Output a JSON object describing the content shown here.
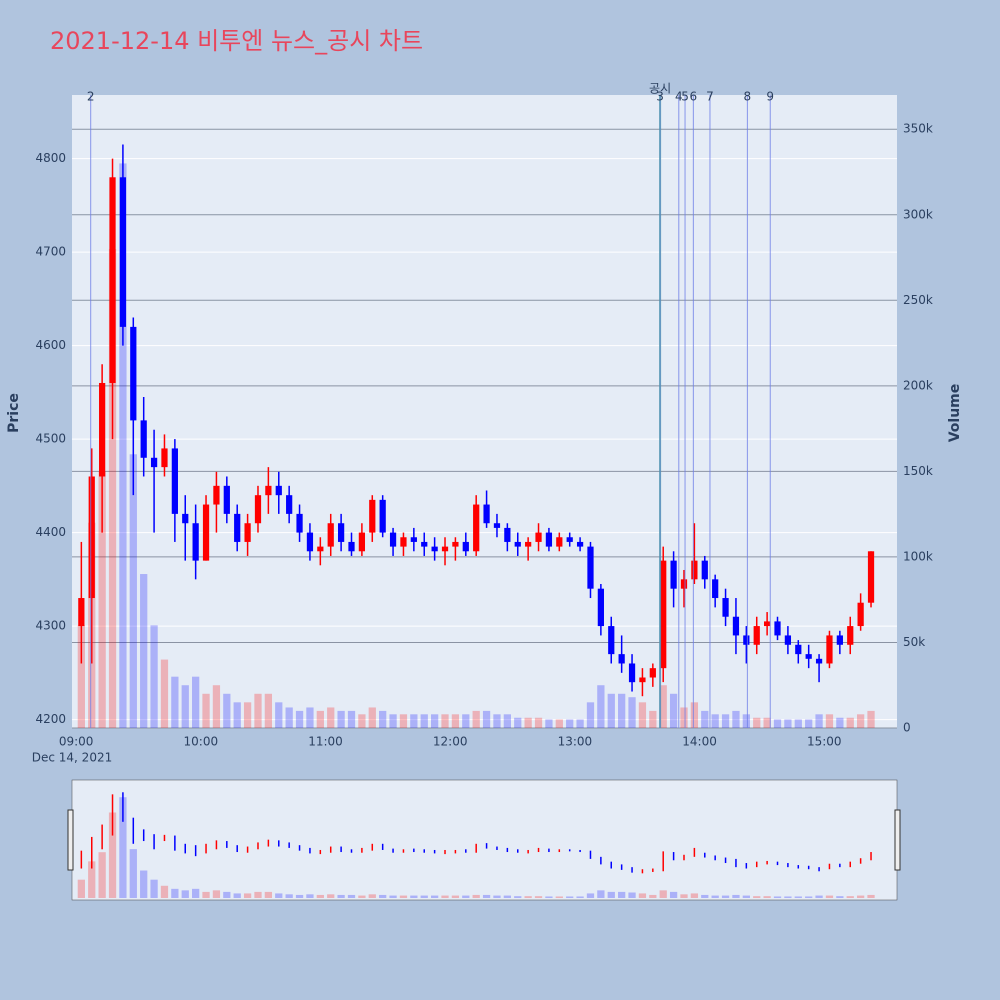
{
  "chart_data": {
    "type": "candlestick",
    "title": "2021-12-14 비투엔 뉴스_공시 차트",
    "y_title": "Price",
    "y2_title": "Volume",
    "x_date_label": "Dec 14, 2021",
    "up_color": "#ff0000",
    "down_color": "#0000ff",
    "xlim": [
      "08:58",
      "15:35"
    ],
    "xticks": [
      "09:00",
      "10:00",
      "11:00",
      "12:00",
      "13:00",
      "14:00",
      "15:00"
    ],
    "ylim": [
      4191,
      4868
    ],
    "yticks": [
      4200,
      4300,
      4400,
      4500,
      4600,
      4700,
      4800
    ],
    "y2lim": [
      0,
      370000
    ],
    "y2ticks": [
      0,
      {
        "value": 50000,
        "label": "50k"
      },
      {
        "value": 100000,
        "label": "100k"
      },
      {
        "value": 150000,
        "label": "150k"
      },
      {
        "value": 200000,
        "label": "200k"
      },
      {
        "value": 250000,
        "label": "250k"
      },
      {
        "value": 300000,
        "label": "300k"
      },
      {
        "value": 350000,
        "label": "350k"
      }
    ],
    "events": [
      {
        "label": "2",
        "x": "09:07",
        "color": "#6f7fe8"
      },
      {
        "label": "공시",
        "x": "13:41",
        "color": "#3aa08a"
      },
      {
        "label": "3",
        "x": "13:41",
        "color": "#6f7fe8"
      },
      {
        "label": "4",
        "x": "13:50",
        "color": "#6f7fe8"
      },
      {
        "label": "5",
        "x": "13:53",
        "color": "#6f7fe8"
      },
      {
        "label": "6",
        "x": "13:57",
        "color": "#6f7fe8"
      },
      {
        "label": "7",
        "x": "14:05",
        "color": "#6f7fe8"
      },
      {
        "label": "8",
        "x": "14:23",
        "color": "#6f7fe8"
      },
      {
        "label": "9",
        "x": "14:34",
        "color": "#6f7fe8"
      }
    ],
    "x": [
      "09:00",
      "09:05",
      "09:10",
      "09:15",
      "09:20",
      "09:25",
      "09:30",
      "09:35",
      "09:40",
      "09:45",
      "09:50",
      "09:55",
      "10:00",
      "10:05",
      "10:10",
      "10:15",
      "10:20",
      "10:25",
      "10:30",
      "10:35",
      "10:40",
      "10:45",
      "10:50",
      "10:55",
      "11:00",
      "11:05",
      "11:10",
      "11:15",
      "11:20",
      "11:25",
      "11:30",
      "11:35",
      "11:40",
      "11:45",
      "11:50",
      "11:55",
      "12:00",
      "12:05",
      "12:10",
      "12:15",
      "12:20",
      "12:25",
      "12:30",
      "12:35",
      "12:40",
      "12:45",
      "12:50",
      "12:55",
      "13:00",
      "13:05",
      "13:10",
      "13:15",
      "13:20",
      "13:25",
      "13:30",
      "13:35",
      "13:40",
      "13:45",
      "13:50",
      "13:55",
      "14:00",
      "14:05",
      "14:10",
      "14:15",
      "14:20",
      "14:25",
      "14:30",
      "14:35",
      "14:40",
      "14:45",
      "14:50",
      "14:55",
      "15:00",
      "15:05",
      "15:10",
      "15:15",
      "15:20"
    ],
    "open": [
      4300,
      4330,
      4460,
      4560,
      4780,
      4620,
      4520,
      4480,
      4470,
      4490,
      4420,
      4410,
      4370,
      4430,
      4450,
      4420,
      4390,
      4410,
      4440,
      4450,
      4440,
      4420,
      4400,
      4380,
      4385,
      4410,
      4390,
      4380,
      4400,
      4435,
      4400,
      4385,
      4395,
      4390,
      4385,
      4380,
      4385,
      4390,
      4380,
      4430,
      4410,
      4405,
      4390,
      4385,
      4390,
      4400,
      4385,
      4395,
      4390,
      4385,
      4340,
      4300,
      4270,
      4260,
      4240,
      4245,
      4255,
      4370,
      4340,
      4350,
      4370,
      4350,
      4330,
      4310,
      4290,
      4280,
      4300,
      4305,
      4290,
      4280,
      4270,
      4265,
      4260,
      4290,
      4280,
      4300,
      4325
    ],
    "high": [
      4390,
      4490,
      4580,
      4800,
      4815,
      4630,
      4545,
      4510,
      4505,
      4500,
      4440,
      4430,
      4440,
      4465,
      4460,
      4430,
      4420,
      4450,
      4470,
      4465,
      4450,
      4430,
      4410,
      4395,
      4420,
      4420,
      4400,
      4410,
      4440,
      4440,
      4405,
      4400,
      4405,
      4400,
      4395,
      4395,
      4395,
      4400,
      4440,
      4445,
      4420,
      4410,
      4400,
      4395,
      4410,
      4405,
      4400,
      4400,
      4395,
      4390,
      4345,
      4310,
      4290,
      4270,
      4255,
      4260,
      4385,
      4380,
      4360,
      4410,
      4375,
      4355,
      4340,
      4330,
      4300,
      4310,
      4315,
      4310,
      4300,
      4285,
      4280,
      4270,
      4295,
      4295,
      4310,
      4335,
      4380
    ],
    "low": [
      4260,
      4260,
      4400,
      4500,
      4600,
      4440,
      4460,
      4400,
      4460,
      4390,
      4370,
      4350,
      4370,
      4400,
      4410,
      4380,
      4375,
      4400,
      4420,
      4420,
      4410,
      4390,
      4370,
      4365,
      4375,
      4380,
      4375,
      4375,
      4390,
      4395,
      4375,
      4375,
      4380,
      4375,
      4370,
      4365,
      4370,
      4375,
      4375,
      4405,
      4395,
      4380,
      4375,
      4370,
      4380,
      4380,
      4380,
      4385,
      4380,
      4330,
      4290,
      4260,
      4250,
      4230,
      4225,
      4235,
      4240,
      4320,
      4320,
      4345,
      4340,
      4320,
      4300,
      4270,
      4260,
      4270,
      4290,
      4285,
      4270,
      4260,
      4255,
      4240,
      4255,
      4270,
      4270,
      4295,
      4320
    ],
    "close": [
      4330,
      4460,
      4560,
      4780,
      4620,
      4520,
      4480,
      4470,
      4490,
      4420,
      4410,
      4370,
      4430,
      4450,
      4420,
      4390,
      4410,
      4440,
      4450,
      4440,
      4420,
      4400,
      4380,
      4385,
      4410,
      4390,
      4380,
      4400,
      4435,
      4400,
      4385,
      4395,
      4390,
      4385,
      4380,
      4385,
      4390,
      4380,
      4430,
      4410,
      4405,
      4390,
      4385,
      4390,
      4400,
      4385,
      4395,
      4390,
      4385,
      4340,
      4300,
      4270,
      4260,
      4240,
      4245,
      4255,
      4370,
      4340,
      4350,
      4370,
      4350,
      4330,
      4310,
      4290,
      4280,
      4300,
      4305,
      4290,
      4280,
      4270,
      4265,
      4260,
      4290,
      4280,
      4300,
      4325,
      4380
    ],
    "volume": [
      60000,
      120000,
      150000,
      280000,
      330000,
      160000,
      90000,
      60000,
      40000,
      30000,
      25000,
      30000,
      20000,
      25000,
      20000,
      15000,
      15000,
      20000,
      20000,
      15000,
      12000,
      10000,
      12000,
      10000,
      12000,
      10000,
      10000,
      8000,
      12000,
      10000,
      8000,
      8000,
      8000,
      8000,
      8000,
      8000,
      8000,
      8000,
      10000,
      10000,
      8000,
      8000,
      6000,
      6000,
      6000,
      5000,
      5000,
      5000,
      5000,
      15000,
      25000,
      20000,
      20000,
      18000,
      15000,
      10000,
      25000,
      20000,
      12000,
      15000,
      10000,
      8000,
      8000,
      10000,
      8000,
      6000,
      6000,
      5000,
      5000,
      5000,
      5000,
      8000,
      8000,
      6000,
      6000,
      8000,
      10000
    ]
  }
}
